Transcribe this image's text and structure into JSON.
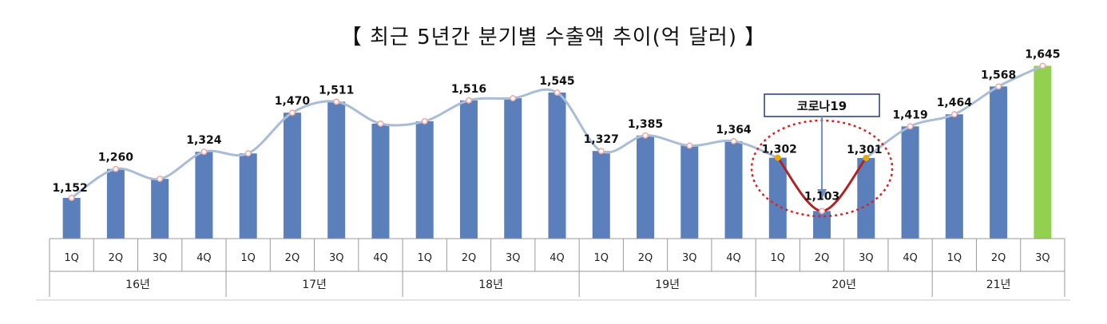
{
  "title": "【 최근 5년간 분기별 수출액 추이(억 달러) 】",
  "chart_data": {
    "type": "bar",
    "title": "【 최근 5년간 분기별 수출액 추이(억 달러) 】",
    "unit": "억 달러",
    "categories": [
      "1Q",
      "2Q",
      "3Q",
      "4Q",
      "1Q",
      "2Q",
      "3Q",
      "4Q",
      "1Q",
      "2Q",
      "3Q",
      "4Q",
      "1Q",
      "2Q",
      "3Q",
      "4Q",
      "1Q",
      "2Q",
      "3Q",
      "4Q",
      "1Q",
      "2Q",
      "3Q"
    ],
    "groups": [
      {
        "label": "16년",
        "count": 4
      },
      {
        "label": "17년",
        "count": 4
      },
      {
        "label": "18년",
        "count": 4
      },
      {
        "label": "19년",
        "count": 4
      },
      {
        "label": "20년",
        "count": 4
      },
      {
        "label": "21년",
        "count": 3
      }
    ],
    "values": [
      1152,
      1260,
      1223,
      1324,
      1318,
      1470,
      1511,
      1429,
      1438,
      1516,
      1524,
      1545,
      1327,
      1385,
      1347,
      1364,
      1302,
      1103,
      1301,
      1419,
      1464,
      1568,
      1645
    ],
    "value_labels": [
      "1,152",
      "1,260",
      "",
      "1,324",
      "",
      "1,470",
      "1,511",
      "",
      "",
      "1,516",
      "",
      "1,545",
      "1,327",
      "1,385",
      "",
      "1,364",
      "1,302",
      "1,103",
      "1,301",
      "1,419",
      "1,464",
      "1,568",
      "1,645"
    ],
    "overlay_line": true,
    "highlight_last_bar": true,
    "annotation": "코로나19",
    "ylim": [
      1000,
      1700
    ],
    "colors": {
      "bar": "#5b7fba",
      "bar_highlight": "#92d050",
      "line": "#a9bcd8",
      "covid_line": "#b22222",
      "covid_circle": "#e02020",
      "marker": "#f4a8a0",
      "covid_marker": "#e8a900"
    }
  }
}
